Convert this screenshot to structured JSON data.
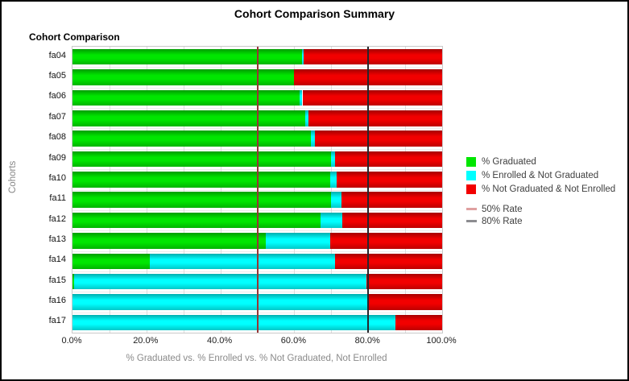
{
  "title": "Cohort Comparison Summary",
  "subtitle": "Cohort Comparison",
  "chart_data": {
    "type": "bar",
    "orientation": "horizontal",
    "stacked": true,
    "title": "Cohort Comparison Summary",
    "subtitle": "Cohort Comparison",
    "xlabel": "% Graduated vs. % Enrolled vs. % Not Graduated, Not Enrolled",
    "ylabel": "Cohorts",
    "xlim": [
      0,
      100
    ],
    "grid": "vertical-minor-10pct",
    "legend_position": "right",
    "categories": [
      "fa04",
      "fa05",
      "fa06",
      "fa07",
      "fa08",
      "fa09",
      "fa10",
      "fa11",
      "fa12",
      "fa13",
      "fa14",
      "fa15",
      "fa16",
      "fa17"
    ],
    "series": [
      {
        "key": "graduated",
        "name": "% Graduated",
        "color": "#00e600",
        "values": [
          62,
          60,
          61.5,
          63,
          64.5,
          70,
          69.7,
          70,
          67,
          52.3,
          21,
          0.5,
          0,
          0
        ]
      },
      {
        "key": "enrolled-not-graduated",
        "name": "% Enrolled & Not Graduated",
        "color": "#00ffff",
        "values": [
          0.5,
          0,
          0.7,
          0.8,
          1,
          1,
          1.8,
          2.7,
          6,
          17.4,
          50,
          79,
          80,
          87.3
        ]
      },
      {
        "key": "not-graduated-not-enrolled",
        "name": "% Not Graduated & Not Enrolled",
        "color": "#f20000",
        "values": [
          37.5,
          40,
          37.8,
          36.2,
          34.5,
          29,
          28.5,
          27.3,
          27,
          30.3,
          29,
          20.5,
          20,
          12.7
        ]
      }
    ],
    "reference_lines": [
      {
        "key": "rate-50",
        "label": "50% Rate",
        "value": 50,
        "line_color": "#983535",
        "legend_color": "#dfa0a0"
      },
      {
        "key": "rate-80",
        "label": "80% Rate",
        "value": 80,
        "line_color": "#26262c",
        "legend_color": "#8c8c90"
      }
    ],
    "x_ticks": [
      {
        "label": "0.0%",
        "value": 0
      },
      {
        "label": "20.0%",
        "value": 20
      },
      {
        "label": "40.0%",
        "value": 40
      },
      {
        "label": "60.0%",
        "value": 60
      },
      {
        "label": "80.0%",
        "value": 80
      },
      {
        "label": "100.0%",
        "value": 100
      }
    ]
  }
}
